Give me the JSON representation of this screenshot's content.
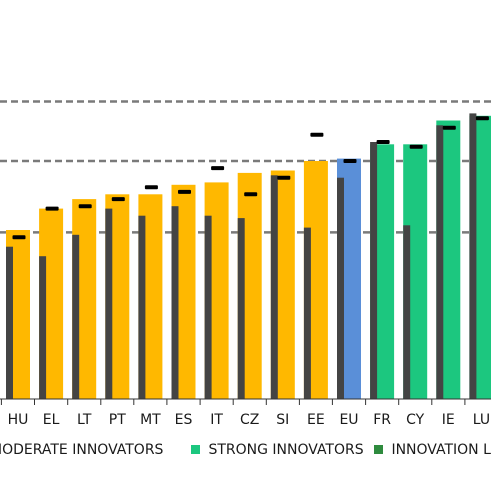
{
  "chart_data": {
    "type": "bar",
    "title": "",
    "xlabel": "",
    "ylabel": "",
    "ylim": [
      0,
      1.5
    ],
    "grid": "horizontal-dashed",
    "gridlines": [
      0.7,
      1.0,
      1.25
    ],
    "categories": [
      "HU",
      "EL",
      "LT",
      "PT",
      "MT",
      "ES",
      "IT",
      "CZ",
      "SI",
      "EE",
      "EU",
      "FR",
      "CY",
      "IE",
      "LU"
    ],
    "groups": [
      "moderate",
      "moderate",
      "moderate",
      "moderate",
      "moderate",
      "moderate",
      "moderate",
      "moderate",
      "moderate",
      "moderate",
      "eu",
      "strong",
      "strong",
      "strong",
      "strong"
    ],
    "series": [
      {
        "role": "current",
        "values": [
          0.71,
          0.8,
          0.84,
          0.86,
          0.86,
          0.9,
          0.91,
          0.95,
          0.96,
          1.0,
          1.01,
          1.07,
          1.07,
          1.17,
          1.19
        ]
      },
      {
        "role": "earlier",
        "values": [
          0.64,
          0.6,
          0.69,
          0.8,
          0.77,
          0.81,
          0.77,
          0.76,
          0.94,
          0.72,
          0.93,
          1.08,
          0.73,
          1.15,
          1.2
        ]
      },
      {
        "role": "marker",
        "values": [
          0.68,
          0.8,
          0.81,
          0.84,
          0.89,
          0.87,
          0.97,
          0.86,
          0.93,
          1.11,
          1.0,
          1.08,
          1.06,
          1.14,
          1.18
        ]
      }
    ],
    "colors": {
      "moderate": "#FFB800",
      "eu": "#5A8FD8",
      "strong": "#1CC77F",
      "leader": "#2E8B3E",
      "dark_bar": "#444444",
      "marker": "#000000",
      "grid": "#7a7a7a",
      "axis": "#333333"
    },
    "legend": {
      "placement": "bottom",
      "items": [
        {
          "key": "moderate",
          "label": "MODERATE INNOVATORS",
          "color": "#FFB800"
        },
        {
          "key": "strong",
          "label": "STRONG INNOVATORS",
          "color": "#1CC77F"
        },
        {
          "key": "leader",
          "label": "INNOVATION LE",
          "color": "#2E8B3E"
        }
      ]
    }
  }
}
